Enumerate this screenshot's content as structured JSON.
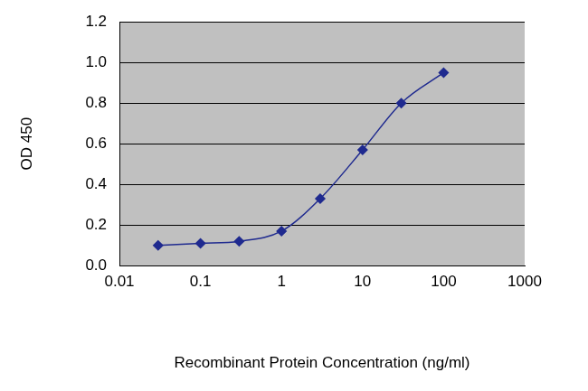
{
  "chart_data": {
    "type": "line",
    "x_label": "Recombinant Protein Concentration (ng/ml)",
    "y_label": "OD 450",
    "x": [
      0.03,
      0.1,
      0.3,
      1,
      3,
      10,
      30,
      100
    ],
    "values": [
      0.1,
      0.11,
      0.12,
      0.17,
      0.33,
      0.57,
      0.8,
      0.95
    ],
    "color": "#1f2a8f",
    "marker": "diamond",
    "line_style": "solid",
    "log": "x",
    "xlim": [
      0.01,
      1000
    ],
    "xticks": [
      0.01,
      0.1,
      1,
      10,
      100,
      1000
    ],
    "ylim": [
      0,
      1.2
    ],
    "yticks": [
      {
        "value": 0,
        "label": "0.0"
      },
      0.2,
      0.4,
      0.6,
      0.8,
      {
        "value": 1,
        "label": "1.0"
      },
      1.2
    ],
    "grid": true
  }
}
